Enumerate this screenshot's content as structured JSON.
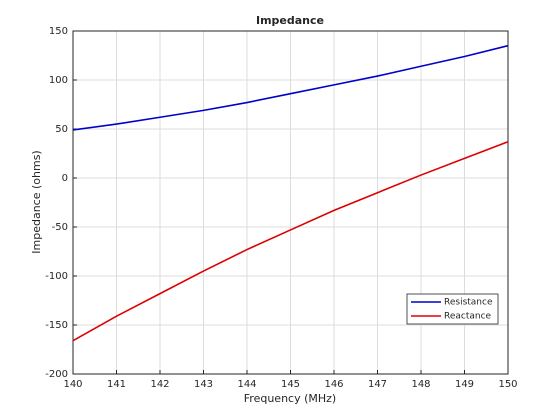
{
  "chart_data": {
    "type": "line",
    "title": "Impedance",
    "x_label": "Frequency (MHz)",
    "y_label": "Impedance (ohms)",
    "x": [
      140,
      141,
      142,
      143,
      144,
      145,
      146,
      147,
      148,
      149,
      150
    ],
    "series": [
      {
        "name": "Resistance",
        "color": "#0000cc",
        "values": [
          49,
          55,
          62,
          69,
          77,
          86,
          95,
          104,
          114,
          124,
          135
        ]
      },
      {
        "name": "Reactance",
        "color": "#dd0000",
        "values": [
          -166,
          -141,
          -118,
          -95,
          -73,
          -53,
          -33,
          -15,
          3,
          20,
          37
        ]
      }
    ],
    "xlim": [
      140,
      150
    ],
    "xticks": [
      140,
      141,
      142,
      143,
      144,
      145,
      146,
      147,
      148,
      149,
      150
    ],
    "ylim": [
      -200,
      150
    ],
    "yticks": [
      -200,
      -150,
      -100,
      -50,
      0,
      50,
      100,
      150
    ],
    "grid": true,
    "legend": "lower right"
  }
}
